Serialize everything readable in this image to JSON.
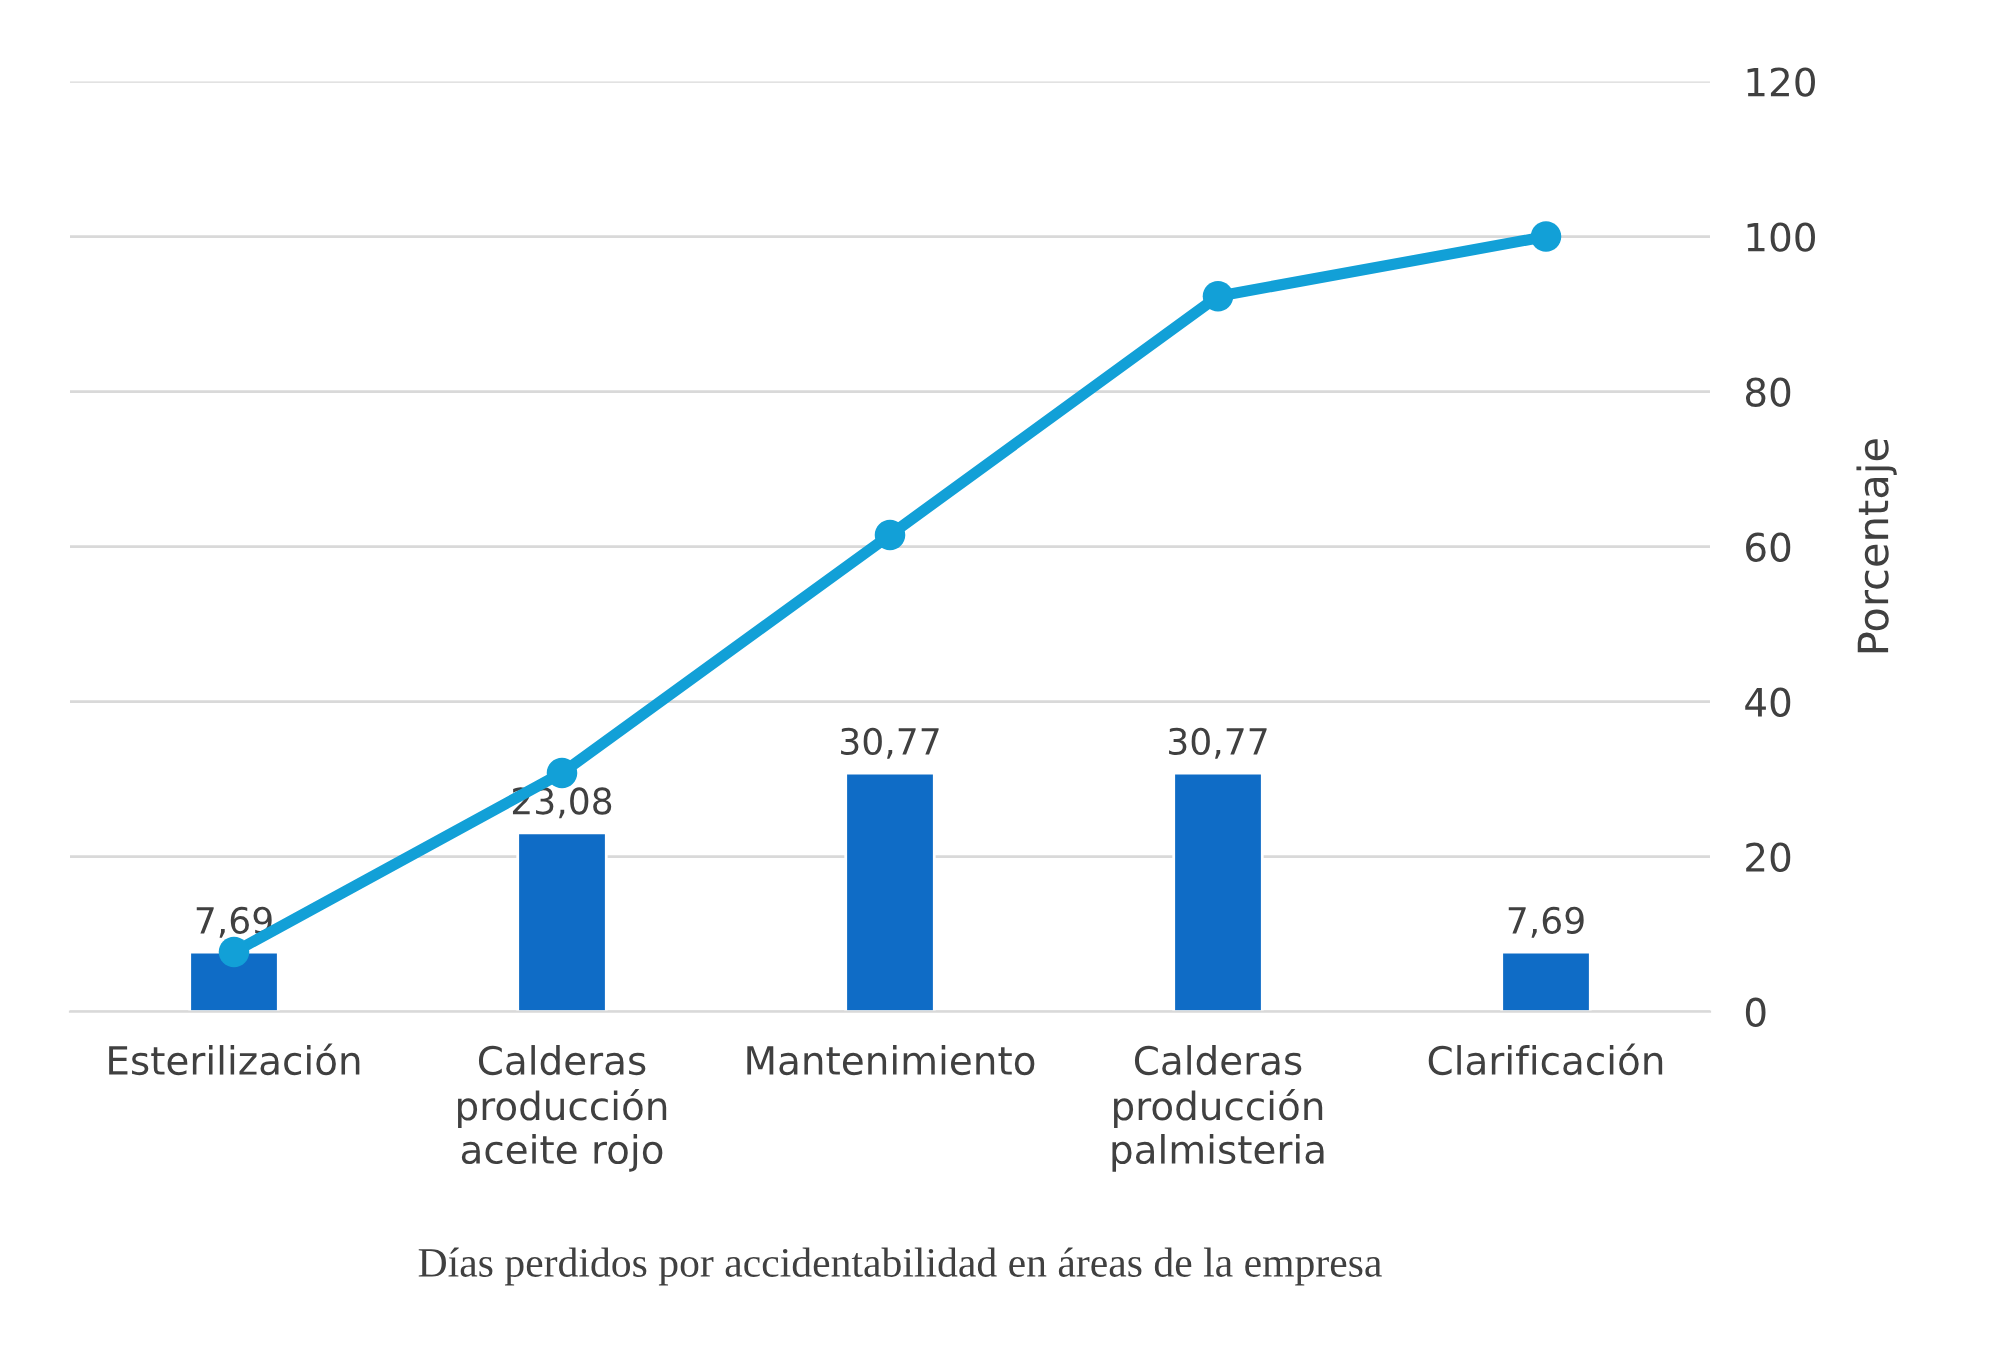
{
  "chart_data": {
    "type": "bar",
    "categories": [
      "Esterilización",
      "Calderas\nproducción\naceite rojo",
      "Mantenimiento",
      "Calderas\nproducción\npalmisteria",
      "Clarificación"
    ],
    "series": [
      {
        "color": "#0f6cc6",
        "values": [
          7.69,
          23.08,
          30.77,
          30.77,
          7.69
        ],
        "value_labels": [
          "7,69",
          "23,08",
          "30,77",
          "30,77",
          "7,69"
        ]
      },
      {
        "type": "line",
        "color": "#12a0d7",
        "values": [
          7.7,
          30.8,
          61.5,
          92.3,
          100
        ],
        "marker": "circle",
        "line_style": "solid"
      }
    ],
    "xlabel": "Días perdidos por accidentabilidad en áreas de la empresa",
    "ylabel": "Porcentaje",
    "ylim": [
      0,
      120
    ],
    "yticks": [
      0,
      20,
      40,
      60,
      80,
      100,
      120
    ],
    "grid": "y",
    "legend": false
  }
}
